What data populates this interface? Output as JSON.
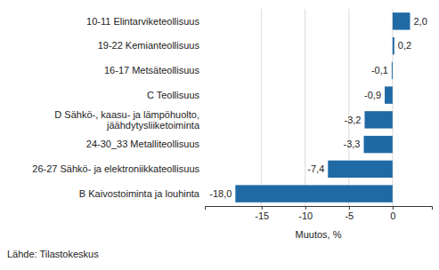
{
  "chart_data": {
    "type": "bar",
    "orientation": "horizontal",
    "categories": [
      "10-11 Elintarviketeollisuus",
      "19-22 Kemianteollisuus",
      "16-17 Metsäteollisuus",
      "C Teollisuus",
      "D Sähkö-, kaasu- ja lämpöhuolto, jäähdytysliiketoiminta",
      "24-30_33 Metalliteollisuus",
      "26-27 Sähkö- ja elektroniikkateollisuus",
      "B Kaivostoiminta ja louhinta"
    ],
    "values": [
      2.0,
      0.2,
      -0.1,
      -0.9,
      -3.2,
      -3.3,
      -7.4,
      -18.0
    ],
    "value_labels": [
      "2,0",
      "0,2",
      "-0,1",
      "-0,9",
      "-3,2",
      "-3,3",
      "-7,4",
      "-18,0"
    ],
    "data_labels": true,
    "color": "#1f6aa5",
    "xlim": [
      -21.5,
      4.5
    ],
    "xticks": [
      -15,
      -10,
      -5,
      0
    ],
    "x_label": "Muutos, %",
    "source": "Lähde: Tilastokeskus",
    "grid": true
  }
}
